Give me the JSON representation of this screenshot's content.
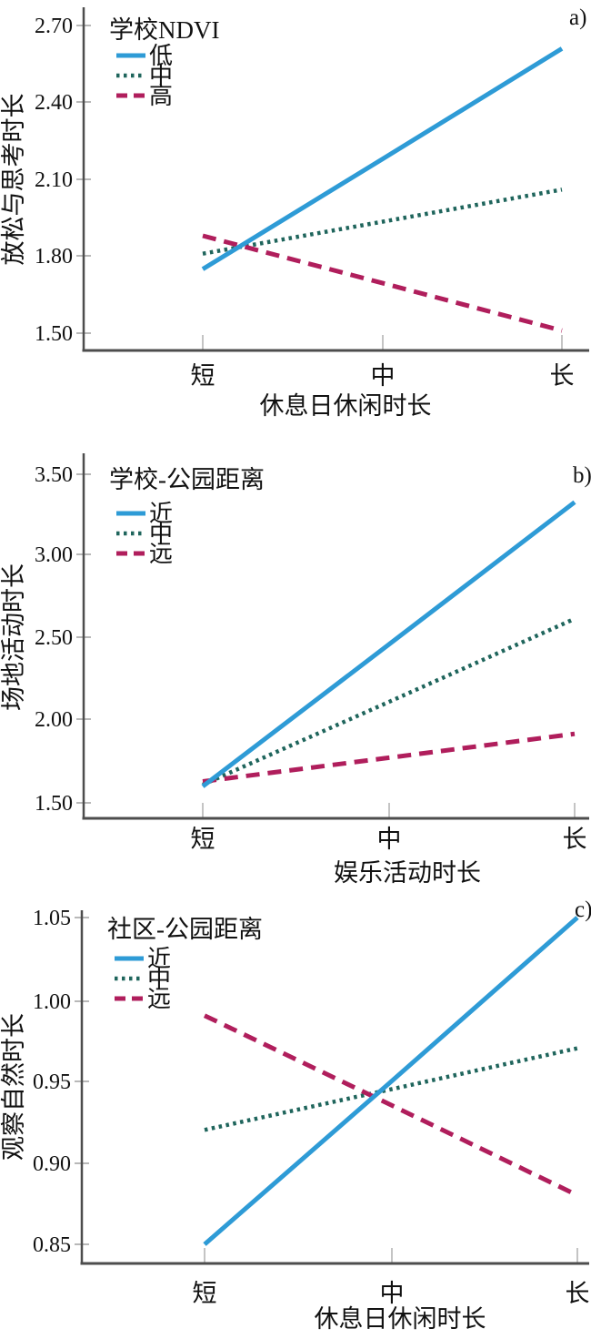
{
  "figure_title": "",
  "chart_data": [
    {
      "type": "line",
      "panel_label": "a)",
      "legend_title": "学校NDVI",
      "legend_position": "top-left-inside",
      "xlabel": "休息日休闲时长",
      "ylabel": "放松与思考时长",
      "categories": [
        "短",
        "中",
        "长"
      ],
      "ytick_values": [
        2.7,
        2.4,
        2.1,
        1.8,
        1.5
      ],
      "ytick_labels": [
        "2.70",
        "2.40",
        "2.10",
        "1.80",
        "1.50"
      ],
      "ylim": [
        1.44,
        2.78
      ],
      "grid": false,
      "series": [
        {
          "name": "低",
          "style": "solid",
          "color": "#2E9BD6",
          "values": [
            1.75,
            2.18,
            2.61
          ]
        },
        {
          "name": "中",
          "style": "dotted",
          "color": "#1F655C",
          "values": [
            1.81,
            1.935,
            2.06
          ]
        },
        {
          "name": "高",
          "style": "dashed",
          "color": "#B01E5C",
          "values": [
            1.88,
            1.695,
            1.51
          ]
        }
      ]
    },
    {
      "type": "line",
      "panel_label": "b)",
      "legend_title": "学校-公园距离",
      "legend_position": "top-left-inside",
      "xlabel": "娱乐活动时长",
      "ylabel": "场地活动时长",
      "categories": [
        "短",
        "中",
        "长"
      ],
      "ytick_values": [
        3.5,
        3.0,
        2.5,
        2.0,
        1.5
      ],
      "ytick_labels": [
        "3.50",
        "3.00",
        "2.50",
        "2.00",
        "1.50"
      ],
      "ylim": [
        1.4,
        3.6
      ],
      "grid": false,
      "series": [
        {
          "name": "近",
          "style": "solid",
          "color": "#2E9BD6",
          "values": [
            1.6,
            2.465,
            3.33
          ]
        },
        {
          "name": "中",
          "style": "dotted",
          "color": "#1F655C",
          "values": [
            1.61,
            2.115,
            2.62
          ]
        },
        {
          "name": "远",
          "style": "dashed",
          "color": "#B01E5C",
          "values": [
            1.63,
            1.775,
            1.92
          ]
        }
      ]
    },
    {
      "type": "line",
      "panel_label": "c)",
      "legend_title": "社区-公园距离",
      "legend_position": "top-left-inside",
      "xlabel": "休息日休闲时长",
      "ylabel": "观察自然时长",
      "categories": [
        "短",
        "中",
        "长"
      ],
      "ytick_values": [
        1.05,
        1.0,
        0.95,
        0.9,
        0.85
      ],
      "ytick_labels": [
        "1.05",
        "1.00",
        "0.95",
        "0.90",
        "0.85"
      ],
      "ylim": [
        0.84,
        1.06
      ],
      "grid": false,
      "series": [
        {
          "name": "近",
          "style": "solid",
          "color": "#2E9BD6",
          "values": [
            0.85,
            0.95,
            1.05
          ]
        },
        {
          "name": "中",
          "style": "dotted",
          "color": "#1F655C",
          "values": [
            0.92,
            0.945,
            0.97
          ]
        },
        {
          "name": "远",
          "style": "dashed",
          "color": "#B01E5C",
          "values": [
            0.99,
            0.935,
            0.88
          ]
        }
      ]
    }
  ],
  "axis_colors": {
    "axis_line": "#4d4d4d",
    "tick_mark": "#b8b8b8",
    "text": "#111111"
  }
}
